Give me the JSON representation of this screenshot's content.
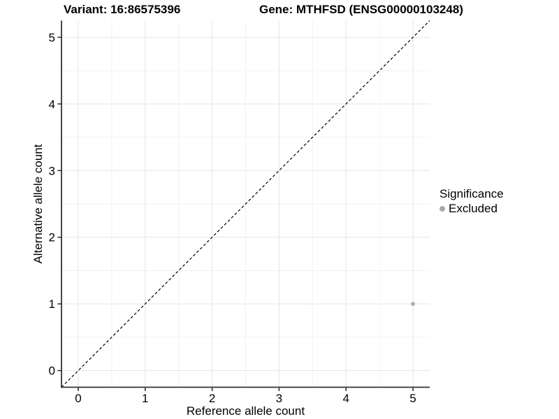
{
  "header": {
    "variant_title": "Variant: 16:86575396",
    "gene_title": "Gene: MTHFSD (ENSG00000103248)"
  },
  "axes": {
    "x_label": "Reference allele count",
    "y_label": "Alternative allele count"
  },
  "legend": {
    "title": "Significance",
    "items": [
      {
        "label": "Excluded",
        "color": "#a9a9a9"
      }
    ]
  },
  "chart_data": {
    "type": "scatter",
    "title": "Variant: 16:86575396 — Gene: MTHFSD (ENSG00000103248)",
    "xlabel": "Reference allele count",
    "ylabel": "Alternative allele count",
    "xlim": [
      -0.25,
      5.25
    ],
    "ylim": [
      -0.25,
      5.25
    ],
    "x_ticks": [
      0,
      1,
      2,
      3,
      4,
      5
    ],
    "y_ticks": [
      0,
      1,
      2,
      3,
      4,
      5
    ],
    "x_minor_ticks": [
      0.5,
      1.5,
      2.5,
      3.5,
      4.5
    ],
    "y_minor_ticks": [
      0.5,
      1.5,
      2.5,
      3.5,
      4.5
    ],
    "grid": "major+minor",
    "legend_position": "right",
    "series": [
      {
        "name": "Excluded",
        "color": "#a9a9a9",
        "marker": "circle",
        "points": [
          {
            "x": 5,
            "y": 1
          }
        ]
      }
    ],
    "reference_line": {
      "kind": "identity",
      "slope": 1,
      "intercept": 0,
      "style": "dashed",
      "color": "#000000"
    }
  },
  "colors": {
    "background": "#ffffff",
    "grid_major": "#e4e4e4",
    "grid_minor": "#f2f2f2",
    "axis_line": "#333333",
    "tick_mark": "#333333",
    "text": "#000000"
  }
}
